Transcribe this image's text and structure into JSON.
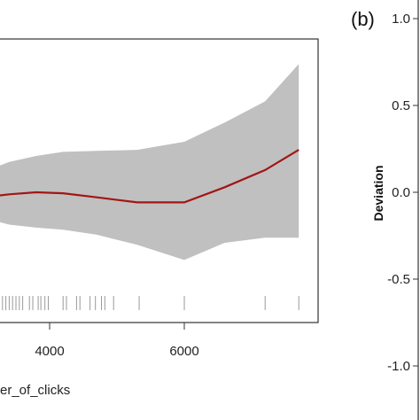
{
  "chart_data": [
    {
      "type": "line",
      "title": "",
      "xlabel": "er_of_clicks",
      "ylabel": "",
      "xlim": [
        2950,
        7750
      ],
      "ylim": [
        -0.65,
        1.0
      ],
      "grid": false,
      "x_ticks": [
        4000,
        6000
      ],
      "x_tick_labels": [
        "4000",
        "6000"
      ],
      "series": [
        {
          "kind": "fit",
          "color": "#a31515",
          "x": [
            3000,
            3400,
            3800,
            4200,
            4700,
            5300,
            6000,
            6600,
            7200,
            7700
          ],
          "y": [
            -0.05,
            -0.02,
            0.0,
            -0.01,
            -0.05,
            -0.1,
            -0.1,
            0.05,
            0.22,
            0.42
          ]
        },
        {
          "kind": "confidence-band",
          "color": "#c0c0c0",
          "x": [
            3000,
            3400,
            3800,
            4200,
            4700,
            5300,
            6000,
            6600,
            7200,
            7700
          ],
          "upper": [
            0.2,
            0.3,
            0.36,
            0.4,
            0.41,
            0.42,
            0.5,
            0.69,
            0.9,
            1.27
          ],
          "lower": [
            -0.25,
            -0.32,
            -0.35,
            -0.37,
            -0.42,
            -0.52,
            -0.67,
            -0.5,
            -0.45,
            -0.45
          ]
        }
      ],
      "rug": [
        3000,
        3050,
        3100,
        3150,
        3200,
        3250,
        3300,
        3350,
        3400,
        3450,
        3500,
        3550,
        3600,
        3700,
        3750,
        3830,
        3870,
        3930,
        3980,
        4200,
        4250,
        4400,
        4450,
        4600,
        4680,
        4770,
        4820,
        4950,
        5330,
        6000,
        7200,
        7700
      ]
    },
    {
      "type": "line",
      "panel_label": "(b)",
      "ylabel": "Deviation",
      "y_ticks": [
        1.0,
        0.5,
        0.0,
        -0.5,
        -1.0
      ],
      "y_tick_labels": [
        "1.0",
        "0.5",
        "0.0",
        "-0.5",
        "-1.0"
      ]
    }
  ],
  "colors": {
    "fit_line": "#a31515",
    "band": "#c0c0c0",
    "rug": "#9a9a9a",
    "axis": "#333333"
  }
}
